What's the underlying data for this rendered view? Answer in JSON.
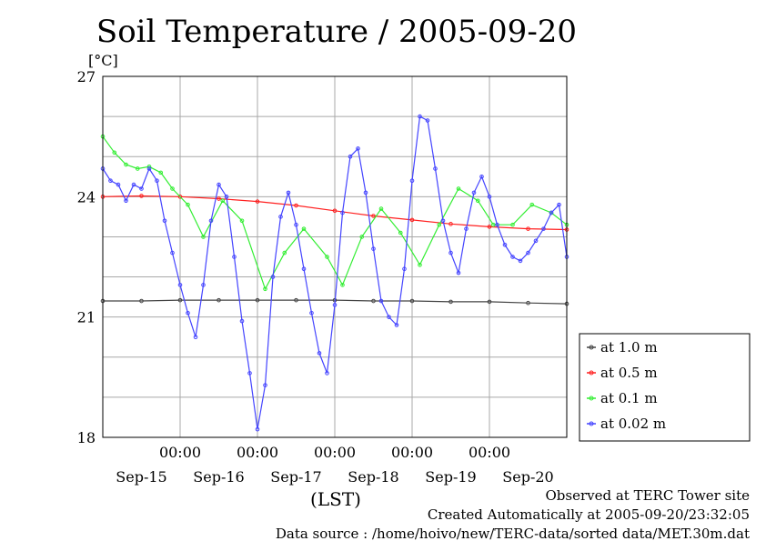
{
  "chart_data": {
    "type": "line",
    "title": "Soil Temperature / 2005-09-20",
    "ylabel": "[°C]",
    "xlabel": "(LST)",
    "ylim": [
      18,
      27
    ],
    "xlim": [
      0,
      6
    ],
    "yticks": [
      18,
      21,
      24,
      27
    ],
    "ytick_labels": [
      "18",
      "21",
      "24",
      "27"
    ],
    "time_ticks": [
      1,
      2,
      3,
      4,
      5
    ],
    "time_tick_labels": [
      "00:00",
      "00:00",
      "00:00",
      "00:00",
      "00:00"
    ],
    "day_labels": [
      "Sep-15",
      "Sep-16",
      "Sep-17",
      "Sep-18",
      "Sep-19",
      "Sep-20"
    ],
    "grid": true,
    "legend_position": "right",
    "series": [
      {
        "name": "at 1.0 m",
        "color": "#444444",
        "x": [
          0,
          0.5,
          1,
          1.5,
          2,
          2.5,
          3,
          3.5,
          4,
          4.5,
          5,
          5.5,
          6
        ],
        "y": [
          21.4,
          21.4,
          21.42,
          21.42,
          21.42,
          21.42,
          21.42,
          21.4,
          21.4,
          21.38,
          21.38,
          21.35,
          21.33
        ]
      },
      {
        "name": "at 0.5 m",
        "color": "#ff2020",
        "x": [
          0,
          0.5,
          1,
          1.5,
          2,
          2.5,
          3,
          3.5,
          4,
          4.5,
          5,
          5.5,
          6
        ],
        "y": [
          24.0,
          24.02,
          24.0,
          23.95,
          23.88,
          23.78,
          23.65,
          23.52,
          23.42,
          23.32,
          23.25,
          23.2,
          23.18
        ]
      },
      {
        "name": "at 0.1 m",
        "color": "#33ee33",
        "x": [
          0,
          0.15,
          0.3,
          0.45,
          0.6,
          0.75,
          0.9,
          1.1,
          1.3,
          1.55,
          1.8,
          2.1,
          2.35,
          2.6,
          2.9,
          3.1,
          3.35,
          3.6,
          3.85,
          4.1,
          4.35,
          4.6,
          4.85,
          5.05,
          5.3,
          5.55,
          5.8,
          6.0
        ],
        "y": [
          25.5,
          25.1,
          24.8,
          24.7,
          24.75,
          24.6,
          24.2,
          23.8,
          23.0,
          23.9,
          23.4,
          21.7,
          22.6,
          23.2,
          22.5,
          21.8,
          23.0,
          23.7,
          23.1,
          22.3,
          23.3,
          24.2,
          23.9,
          23.3,
          23.3,
          23.8,
          23.6,
          23.3
        ]
      },
      {
        "name": "at 0.02 m",
        "color": "#4444ff",
        "x": [
          0,
          0.1,
          0.2,
          0.3,
          0.4,
          0.5,
          0.6,
          0.7,
          0.8,
          0.9,
          1.0,
          1.1,
          1.2,
          1.3,
          1.4,
          1.5,
          1.6,
          1.7,
          1.8,
          1.9,
          2.0,
          2.1,
          2.2,
          2.3,
          2.4,
          2.5,
          2.6,
          2.7,
          2.8,
          2.9,
          3.0,
          3.1,
          3.2,
          3.3,
          3.4,
          3.5,
          3.6,
          3.7,
          3.8,
          3.9,
          4.0,
          4.1,
          4.2,
          4.3,
          4.4,
          4.5,
          4.6,
          4.7,
          4.8,
          4.9,
          5.0,
          5.1,
          5.2,
          5.3,
          5.4,
          5.5,
          5.6,
          5.7,
          5.8,
          5.9,
          6.0
        ],
        "y": [
          24.7,
          24.4,
          24.3,
          23.9,
          24.3,
          24.2,
          24.7,
          24.4,
          23.4,
          22.6,
          21.8,
          21.1,
          20.5,
          21.8,
          23.4,
          24.3,
          24.0,
          22.5,
          20.9,
          19.6,
          18.2,
          19.3,
          22.0,
          23.5,
          24.1,
          23.3,
          22.2,
          21.1,
          20.1,
          19.6,
          21.3,
          23.6,
          25.0,
          25.2,
          24.1,
          22.7,
          21.4,
          21.0,
          20.8,
          22.2,
          24.4,
          26.0,
          25.9,
          24.7,
          23.4,
          22.6,
          22.1,
          23.2,
          24.1,
          24.5,
          24.0,
          23.3,
          22.8,
          22.5,
          22.4,
          22.6,
          22.9,
          23.2,
          23.6,
          23.8,
          22.5
        ]
      }
    ]
  },
  "footer": {
    "site": "Observed at TERC Tower site",
    "created": "Created Automatically at 2005-09-20/23:32:05",
    "source": "Data source : /home/hoivo/new/TERC-data/sorted  data/MET.30m.dat"
  }
}
